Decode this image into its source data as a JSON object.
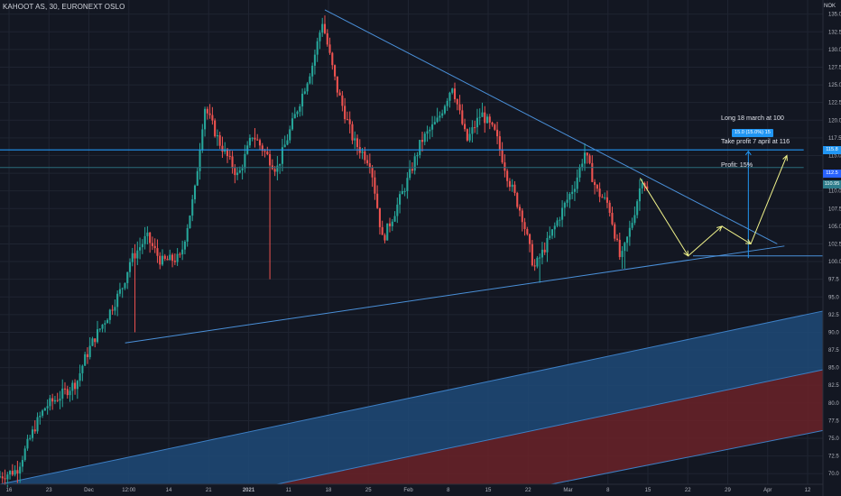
{
  "header": {
    "title": "KAHOOT AS, 30, EURONEXT OSLO"
  },
  "currency": "NOK",
  "annotation": {
    "lines": [
      "Long 18 march at 100",
      "Take profit 7 april at 116",
      "Profit: 15%"
    ]
  },
  "measure_label": "15.0 (15.0%) 15",
  "price_tags": [
    {
      "label": "115.8",
      "value": 115.8,
      "color": "#2196f3"
    },
    {
      "label": "112.5",
      "value": 112.5,
      "color": "#2962ff"
    },
    {
      "label": "110.95",
      "value": 110.95,
      "color": "#2e7d8c"
    }
  ],
  "colors": {
    "background": "#131722",
    "grid": "#1f2431",
    "up_candle": "#26a69a",
    "down_candle": "#ef5350",
    "trendline": "#4a90d9",
    "arrow": "#f0f28a",
    "channel_blue": "#1e4a78",
    "channel_red": "#6b2228"
  },
  "chart_data": {
    "type": "candlestick",
    "instrument": "KAHOOT AS",
    "timeframe": "30",
    "exchange": "EURONEXT OSLO",
    "y_axis": {
      "ticks": [
        70.0,
        72.5,
        75.0,
        77.5,
        80.0,
        82.5,
        85.0,
        87.5,
        90.0,
        92.5,
        95.0,
        97.5,
        100.0,
        102.5,
        105.0,
        107.5,
        110.0,
        112.5,
        115.0,
        117.5,
        120.0,
        122.5,
        125.0,
        127.5,
        130.0,
        132.5,
        135.0
      ],
      "labels": [
        "70.0",
        "72.5",
        "75.0",
        "77.5",
        "80.0",
        "82.5",
        "85.0",
        "87.5",
        "90.0",
        "92.5",
        "95.0",
        "97.5",
        "100.0",
        "102.5",
        "105.0",
        "107.5",
        "110.0",
        "112.5",
        "115.0",
        "117.5",
        "120.0",
        "122.5",
        "125.0",
        "127.5",
        "130.0",
        "132.5",
        "135.0"
      ]
    },
    "x_axis": {
      "labels": [
        "16",
        "23",
        "Dec",
        "12:00",
        "14",
        "21",
        "2021",
        "11",
        "18",
        "25",
        "Feb",
        "8",
        "15",
        "22",
        "Mar",
        "8",
        "15",
        "22",
        "29",
        "Apr",
        "12"
      ],
      "bold": [
        "2021"
      ]
    },
    "price_series": {
      "anchors": [
        [
          0.0,
          69.5
        ],
        [
          0.8,
          70.5
        ],
        [
          1.6,
          77.0
        ],
        [
          2.0,
          79.5
        ],
        [
          2.6,
          81.0
        ],
        [
          3.3,
          83.0
        ],
        [
          3.6,
          86.0
        ],
        [
          4.0,
          89.0
        ],
        [
          4.6,
          92.5
        ],
        [
          5.2,
          96.5
        ],
        [
          5.5,
          100.0
        ],
        [
          6.2,
          103.5
        ],
        [
          6.8,
          100.0
        ],
        [
          7.6,
          100.5
        ],
        [
          8.2,
          110.0
        ],
        [
          8.6,
          122.0
        ],
        [
          9.2,
          117.0
        ],
        [
          10.0,
          112.0
        ],
        [
          10.6,
          118.0
        ],
        [
          11.6,
          113.0
        ],
        [
          12.3,
          120.0
        ],
        [
          13.1,
          128.0
        ],
        [
          13.5,
          134.0
        ],
        [
          14.1,
          124.5
        ],
        [
          14.8,
          117.0
        ],
        [
          15.5,
          114.0
        ],
        [
          16.0,
          103.0
        ],
        [
          16.5,
          107.0
        ],
        [
          17.1,
          112.0
        ],
        [
          17.6,
          117.0
        ],
        [
          18.3,
          120.0
        ],
        [
          18.9,
          125.0
        ],
        [
          19.5,
          117.0
        ],
        [
          20.1,
          121.0
        ],
        [
          20.7,
          118.0
        ],
        [
          21.2,
          112.0
        ],
        [
          21.8,
          106.5
        ],
        [
          22.3,
          99.0
        ],
        [
          22.9,
          103.0
        ],
        [
          23.5,
          107.5
        ],
        [
          24.0,
          111.0
        ],
        [
          24.4,
          115.5
        ],
        [
          24.9,
          110.0
        ],
        [
          25.4,
          108.0
        ],
        [
          25.9,
          100.0
        ],
        [
          26.4,
          106.0
        ],
        [
          26.8,
          112.0
        ],
        [
          27.0,
          110.0
        ]
      ],
      "count": 260,
      "low_extremes": [
        [
          5.6,
          90.0
        ],
        [
          11.2,
          97.5
        ],
        [
          22.4,
          97.0
        ],
        [
          25.9,
          99.0
        ]
      ]
    },
    "drawings": [
      {
        "name": "descending-trendline",
        "points": [
          [
            13.5,
            135.6
          ],
          [
            32.3,
            102.5
          ]
        ]
      },
      {
        "name": "ascending-trendline",
        "points": [
          [
            5.2,
            88.5
          ],
          [
            32.6,
            102.2
          ]
        ]
      },
      {
        "name": "resistance-line",
        "points": [
          [
            0,
            115.8
          ],
          [
            33.4,
            115.8
          ]
        ]
      },
      {
        "name": "support-line",
        "points": [
          [
            28.8,
            100.8
          ],
          [
            34.2,
            100.8
          ]
        ]
      },
      {
        "name": "faint-level-line",
        "points": [
          [
            0,
            113.3
          ],
          [
            33.4,
            113.3
          ]
        ]
      },
      {
        "name": "blue-channel-upper",
        "points": [
          [
            0,
            68.5
          ],
          [
            34.2,
            93.0
          ]
        ]
      },
      {
        "name": "blue-channel-lower",
        "points": [
          [
            11.5,
            68.5
          ],
          [
            34.2,
            84.7
          ]
        ]
      },
      {
        "name": "red-channel-lower",
        "points": [
          [
            22.9,
            68.5
          ],
          [
            34.2,
            76.1
          ]
        ]
      },
      {
        "name": "projection-arrows",
        "points": [
          [
            26.6,
            111.8
          ],
          [
            28.6,
            100.8
          ],
          [
            30.0,
            105.0
          ],
          [
            31.2,
            102.5
          ],
          [
            32.7,
            115.0
          ]
        ]
      },
      {
        "name": "measure-vertical",
        "points": [
          [
            31.1,
            100.5
          ],
          [
            31.1,
            115.6
          ]
        ]
      }
    ],
    "x_range": [
      0,
      34.2
    ],
    "y_range": [
      68.5,
      137.0
    ],
    "grid": true
  }
}
